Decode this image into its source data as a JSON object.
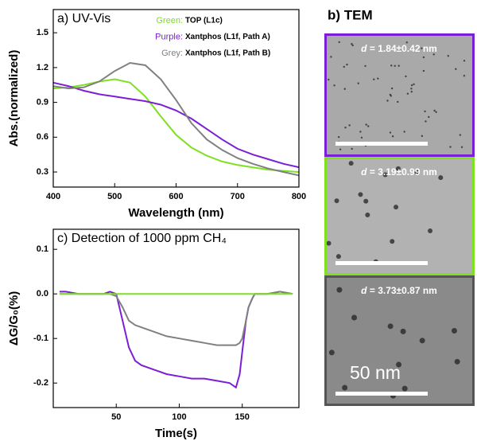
{
  "chart_data": [
    {
      "type": "line",
      "title": "a) UV-Vis",
      "xlabel": "Wavelength (nm)",
      "ylabel": "Abs.(normalized)",
      "x": [
        400,
        425,
        450,
        475,
        500,
        525,
        550,
        575,
        600,
        625,
        650,
        675,
        700,
        725,
        750,
        775,
        800
      ],
      "series": [
        {
          "legend_label": "Green:",
          "name": "TOP (L1c)",
          "color": "#7ee021",
          "values": [
            1.02,
            1.03,
            1.05,
            1.08,
            1.1,
            1.07,
            0.95,
            0.78,
            0.62,
            0.51,
            0.44,
            0.39,
            0.36,
            0.34,
            0.32,
            0.31,
            0.3
          ]
        },
        {
          "legend_label": "Purple:",
          "name": "Xantphos (L1f, Path A)",
          "color": "#7b1fd6",
          "values": [
            1.07,
            1.04,
            1.0,
            0.97,
            0.95,
            0.93,
            0.91,
            0.88,
            0.83,
            0.76,
            0.67,
            0.58,
            0.5,
            0.45,
            0.41,
            0.37,
            0.34
          ]
        },
        {
          "legend_label": "Grey:",
          "name": "Xantphos (L1f, Path B)",
          "color": "#808080",
          "values": [
            1.04,
            1.02,
            1.03,
            1.08,
            1.17,
            1.24,
            1.22,
            1.1,
            0.92,
            0.72,
            0.58,
            0.49,
            0.42,
            0.37,
            0.33,
            0.3,
            0.27
          ]
        }
      ],
      "xlim": [
        400,
        800
      ],
      "xticks": [
        400,
        500,
        600,
        700,
        800
      ],
      "ylim": [
        0.17,
        1.7
      ],
      "yticks": [
        0.3,
        0.6,
        0.9,
        1.2,
        1.5
      ],
      "legend": true
    },
    {
      "type": "line",
      "title": "c) Detection of 1000 ppm CH₄",
      "xlabel": "Time(s)",
      "ylabel": "ΔG/G₀(%)",
      "x": [
        5,
        10,
        20,
        30,
        40,
        45,
        50,
        55,
        60,
        65,
        70,
        80,
        90,
        100,
        110,
        120,
        130,
        140,
        145,
        148,
        150,
        153,
        155,
        158,
        160,
        170,
        180,
        190
      ],
      "series": [
        {
          "color": "#7b1fd6",
          "values": [
            0.005,
            0.005,
            0.0,
            0.0,
            0.0,
            0.005,
            0.0,
            -0.06,
            -0.12,
            -0.15,
            -0.16,
            -0.17,
            -0.18,
            -0.185,
            -0.19,
            -0.19,
            -0.195,
            -0.2,
            -0.21,
            -0.18,
            -0.13,
            -0.06,
            -0.03,
            -0.01,
            0.0,
            0.0,
            0.005,
            0.0
          ]
        },
        {
          "color": "#808080",
          "values": [
            0.0,
            0.0,
            0.0,
            0.0,
            0.0,
            0.0,
            -0.005,
            -0.03,
            -0.06,
            -0.07,
            -0.075,
            -0.085,
            -0.095,
            -0.1,
            -0.105,
            -0.11,
            -0.115,
            -0.115,
            -0.115,
            -0.11,
            -0.1,
            -0.06,
            -0.03,
            -0.01,
            0.0,
            0.0,
            0.005,
            0.0
          ]
        },
        {
          "color": "#7ee021",
          "values": [
            0,
            0,
            0,
            0,
            0,
            0,
            0,
            0,
            0,
            0,
            0,
            0,
            0,
            0,
            0,
            0,
            0,
            0,
            0,
            0,
            0,
            0,
            0,
            0,
            0,
            0,
            0,
            0
          ]
        }
      ],
      "xlim": [
        0,
        195
      ],
      "xticks": [
        50,
        100,
        150
      ],
      "ylim": [
        -0.255,
        0.145
      ],
      "yticks": [
        0.1,
        {
          "value": 0,
          "label": "0.0"
        },
        -0.1,
        -0.2
      ],
      "legend": false
    }
  ],
  "tem": {
    "title": "b) TEM",
    "scale_label": "50 nm",
    "images": [
      {
        "label_var": "d",
        "label": " = 1.84±0.42 nm",
        "border": "#7b1fd6"
      },
      {
        "label_var": "d",
        "label": " = 3.19±0.99 nm",
        "border": "#7ee021"
      },
      {
        "label_var": "d",
        "label": " = 3.73±0.87 nm",
        "border": "#555555"
      }
    ]
  }
}
